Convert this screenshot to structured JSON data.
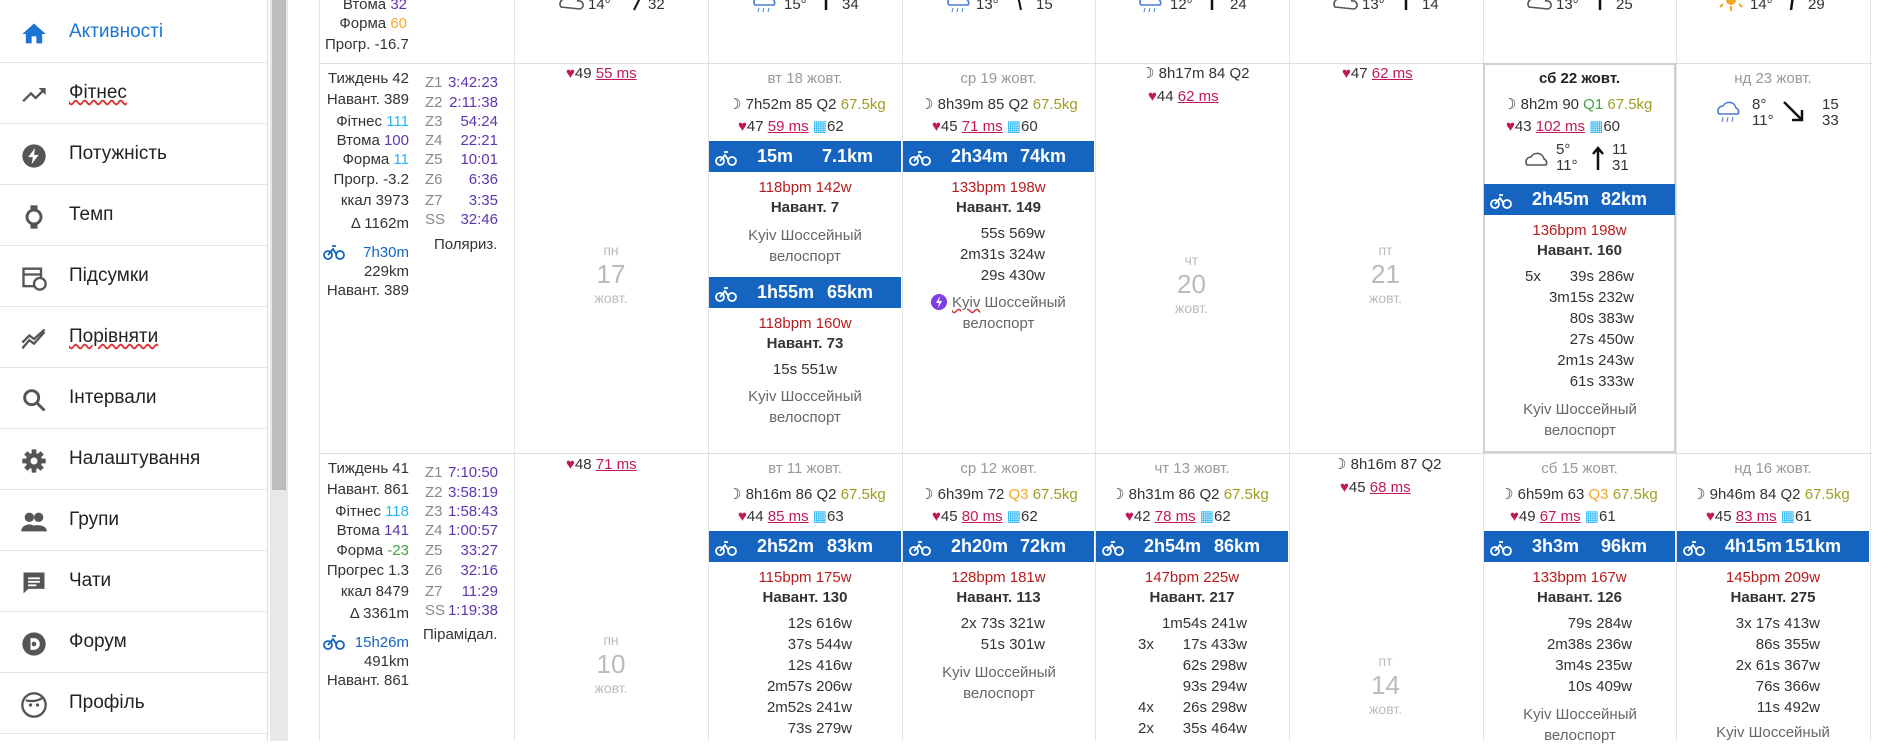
{
  "nav": [
    {
      "label": "Активності",
      "icon": "home-icon",
      "active": true
    },
    {
      "label": "Фітнес",
      "icon": "trending-up-icon"
    },
    {
      "label": "Потужність",
      "icon": "bolt-icon"
    },
    {
      "label": "Темп",
      "icon": "watch-icon"
    },
    {
      "label": "Підсумки",
      "icon": "calendar-clock-icon"
    },
    {
      "label": "Порівняти",
      "icon": "compare-chart-icon"
    },
    {
      "label": "Інтервали",
      "icon": "search-icon"
    },
    {
      "label": "Налаштування",
      "icon": "gear-icon"
    },
    {
      "label": "Групи",
      "icon": "people-icon"
    },
    {
      "label": "Чати",
      "icon": "chat-icon"
    },
    {
      "label": "Форум",
      "icon": "discourse-icon"
    },
    {
      "label": "Профіль",
      "icon": "face-icon"
    }
  ],
  "top": {
    "fatigue_label": "Втома",
    "fatigue": "32",
    "form_label": "Форма",
    "form": "60",
    "forecast_label": "Прогр.",
    "forecast": "-16.7",
    "weather": [
      {
        "t": "14°",
        "w": "32"
      },
      {
        "t": "15°",
        "w": "34"
      },
      {
        "t": "13°",
        "w": "15"
      },
      {
        "t": "12°",
        "w": "24"
      },
      {
        "t": "13°",
        "w": "14"
      },
      {
        "t": "13°",
        "w": "25"
      },
      {
        "t": "14°",
        "w": "29"
      }
    ]
  },
  "week42": {
    "week": "Тиждень 42",
    "load": "Навант. 389",
    "fitness_l": "Фітнес",
    "fitness": "111",
    "fatigue_l": "Втома",
    "fatigue": "100",
    "form_l": "Форма",
    "form": "11",
    "forecast": "Прогр. -3.2",
    "kcal": "ккал 3973",
    "elev": "Δ 1162m",
    "zones": [
      [
        "Z1",
        "3:42:23"
      ],
      [
        "Z2",
        "2:11:38"
      ],
      [
        "Z3",
        "54:24"
      ],
      [
        "Z4",
        "22:21"
      ],
      [
        "Z5",
        "10:01"
      ],
      [
        "Z6",
        "6:36"
      ],
      [
        "Z7",
        "3:35"
      ],
      [
        "SS",
        "32:46"
      ]
    ],
    "mode": "Поляриз.",
    "ride_time": "7h30m",
    "ride_dist": "229km",
    "ride_load": "Навант. 389",
    "mon": {
      "hr": "49",
      "ms": "55 ms",
      "dow": "пн",
      "day": "17",
      "month": "жовт."
    },
    "tue": {
      "date": "вт 18 жовт.",
      "sleep": "7h52m 85 Q2",
      "weight": "67.5kg",
      "hr": "47",
      "ms": "59 ms",
      "hrv": "62",
      "a1": {
        "time": "15m",
        "dist": "7.1km",
        "stats": "118bpm 142w",
        "load": "Навант. 7",
        "name": "Kyiv Шоссейный велоспорт"
      },
      "a2": {
        "time": "1h55m",
        "dist": "65km",
        "stats": "118bpm 160w",
        "load": "Навант. 73",
        "int": "15s 551w",
        "name": "Kyiv Шоссейный велоспорт"
      }
    },
    "wed": {
      "date": "ср 19 жовт.",
      "sleep": "8h39m 85 Q2",
      "weight": "67.5kg",
      "hr": "45",
      "ms": "71 ms",
      "hrv": "60",
      "a1": {
        "time": "2h34m",
        "dist": "74km",
        "stats": "133bpm 198w",
        "load": "Навант. 149",
        "ints": [
          "55s 569w",
          "2m31s 324w",
          "29s 430w"
        ],
        "name1": "Kyiv",
        "name2": "Шоссейный",
        "name3": "велоспорт"
      }
    },
    "thu": {
      "sleep": "8h17m 84 Q2",
      "hr": "44",
      "ms": "62 ms",
      "dow": "чт",
      "day": "20",
      "month": "жовт."
    },
    "fri": {
      "hr": "47",
      "ms": "62 ms",
      "dow": "пт",
      "day": "21",
      "month": "жовт."
    },
    "sat": {
      "date": "сб 22 жовт.",
      "sleep": "8h2m 90",
      "q": "Q1",
      "weight": "67.5kg",
      "hr": "43",
      "ms": "102 ms",
      "hrv": "60",
      "w_t1": "5°",
      "w_t2": "11°",
      "w_w1": "11",
      "w_w2": "31",
      "a1": {
        "time": "2h45m",
        "dist": "82km",
        "stats": "136bpm 198w",
        "load": "Навант. 160",
        "rep": "5x",
        "ints": [
          "39s 286w",
          "3m15s 232w",
          "80s 383w",
          "27s 450w",
          "2m1s 243w",
          "61s 333w"
        ],
        "name": "Kyiv Шоссейный велоспорт"
      }
    },
    "sun": {
      "date": "нд 23 жовт.",
      "t1": "8°",
      "t2": "11°",
      "w1": "15",
      "w2": "33"
    }
  },
  "week41": {
    "week": "Тиждень 41",
    "load": "Навант. 861",
    "fitness_l": "Фітнес",
    "fitness": "118",
    "fatigue_l": "Втома",
    "fatigue": "141",
    "form_l": "Форма",
    "form": "-23",
    "forecast": "Прогрес 1.3",
    "kcal": "ккал 8479",
    "elev": "Δ 3361m",
    "zones": [
      [
        "Z1",
        "7:10:50"
      ],
      [
        "Z2",
        "3:58:19"
      ],
      [
        "Z3",
        "1:58:43"
      ],
      [
        "Z4",
        "1:00:57"
      ],
      [
        "Z5",
        "33:27"
      ],
      [
        "Z6",
        "32:16"
      ],
      [
        "Z7",
        "11:29"
      ],
      [
        "SS",
        "1:19:38"
      ]
    ],
    "mode": "Пірамідал.",
    "ride_time": "15h26m",
    "ride_dist": "491km",
    "ride_load": "Навант. 861",
    "mon": {
      "hr": "48",
      "ms": "71 ms",
      "dow": "пн",
      "day": "10",
      "month": "жовт."
    },
    "tue": {
      "date": "вт 11 жовт.",
      "sleep": "8h16m 86 Q2",
      "weight": "67.5kg",
      "hr": "44",
      "ms": "85 ms",
      "hrv": "63",
      "a1": {
        "time": "2h52m",
        "dist": "83km",
        "stats": "115bpm 175w",
        "load": "Навант. 130",
        "ints": [
          "12s 616w",
          "37s 544w",
          "12s 416w",
          "2m57s 206w",
          "2m52s 241w",
          "73s 279w"
        ]
      }
    },
    "wed": {
      "date": "ср 12 жовт.",
      "sleep": "6h39m 72",
      "q": "Q3",
      "weight": "67.5kg",
      "hr": "45",
      "ms": "80 ms",
      "hrv": "62",
      "a1": {
        "time": "2h20m",
        "dist": "72km",
        "stats": "128bpm 181w",
        "load": "Навант. 113",
        "ints": [
          "2x 73s 321w",
          "51s 301w"
        ],
        "name": "Kyiv Шоссейный велоспорт"
      }
    },
    "thu": {
      "date": "чт 13 жовт.",
      "sleep": "8h31m 86 Q2",
      "weight": "67.5kg",
      "hr": "42",
      "ms": "78 ms",
      "hrv": "62",
      "a1": {
        "time": "2h54m",
        "dist": "86km",
        "stats": "147bpm 225w",
        "load": "Навант. 217",
        "ints": [
          "1m54s 241w",
          "17s 433w",
          "62s 298w",
          "93s 294w",
          "26s 298w",
          "35s 464w"
        ],
        "reps": [
          "",
          "3x",
          "",
          "",
          "4x",
          "2x"
        ]
      }
    },
    "fri": {
      "sleep": "8h16m 87 Q2",
      "hr": "45",
      "ms": "68 ms",
      "dow": "пт",
      "day": "14",
      "month": "жовт."
    },
    "sat": {
      "date": "сб 15 жовт.",
      "sleep": "6h59m 63",
      "q": "Q3",
      "weight": "67.5kg",
      "hr": "49",
      "ms": "67 ms",
      "hrv": "61",
      "a1": {
        "time": "3h3m",
        "dist": "96km",
        "stats": "133bpm 167w",
        "load": "Навант. 126",
        "ints": [
          "79s 284w",
          "2m38s 236w",
          "3m4s 235w",
          "10s 409w"
        ],
        "name": "Kyiv Шоссейный велоспорт"
      }
    },
    "sun": {
      "date": "нд 16 жовт.",
      "sleep": "9h46m 84 Q2",
      "weight": "67.5kg",
      "hr": "45",
      "ms": "83 ms",
      "hrv": "61",
      "a1": {
        "time": "4h15m",
        "dist": "151km",
        "stats": "145bpm 209w",
        "load": "Навант. 275",
        "ints": [
          "3x 17s 413w",
          "86s 355w",
          "2x 61s 367w",
          "76s 366w",
          "11s 492w"
        ],
        "name": "Kyiv Шоссейный"
      }
    }
  }
}
